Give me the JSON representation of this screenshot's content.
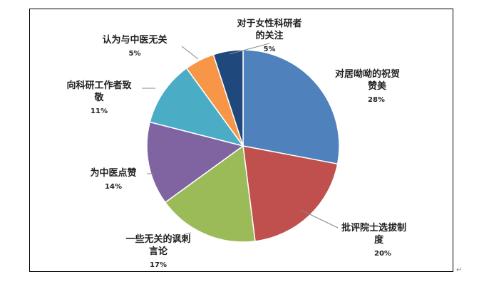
{
  "chart_data": {
    "type": "pie",
    "title": "",
    "colors": [
      "#4F81BD",
      "#C0504D",
      "#9BBB59",
      "#8064A2",
      "#4BACC6",
      "#F79646",
      "#1F497D"
    ],
    "slices": [
      {
        "label_lines": [
          "对居呦呦的祝贺",
          "赞美"
        ],
        "value": 28,
        "pct": "28%"
      },
      {
        "label_lines": [
          "批评院士选拔制",
          "度"
        ],
        "value": 20,
        "pct": "20%"
      },
      {
        "label_lines": [
          "一些无关的讽刺",
          "言论"
        ],
        "value": 17,
        "pct": "17%"
      },
      {
        "label_lines": [
          "为中医点赞"
        ],
        "value": 14,
        "pct": "14%"
      },
      {
        "label_lines": [
          "向科研工作者致",
          "敬"
        ],
        "value": 11,
        "pct": "11%"
      },
      {
        "label_lines": [
          "认为与中医无关"
        ],
        "value": 5,
        "pct": "5%"
      },
      {
        "label_lines": [
          "对于女性科研者",
          "的关注"
        ],
        "value": 5,
        "pct": "5%"
      }
    ]
  },
  "footer": {
    "return_mark": "↵"
  }
}
